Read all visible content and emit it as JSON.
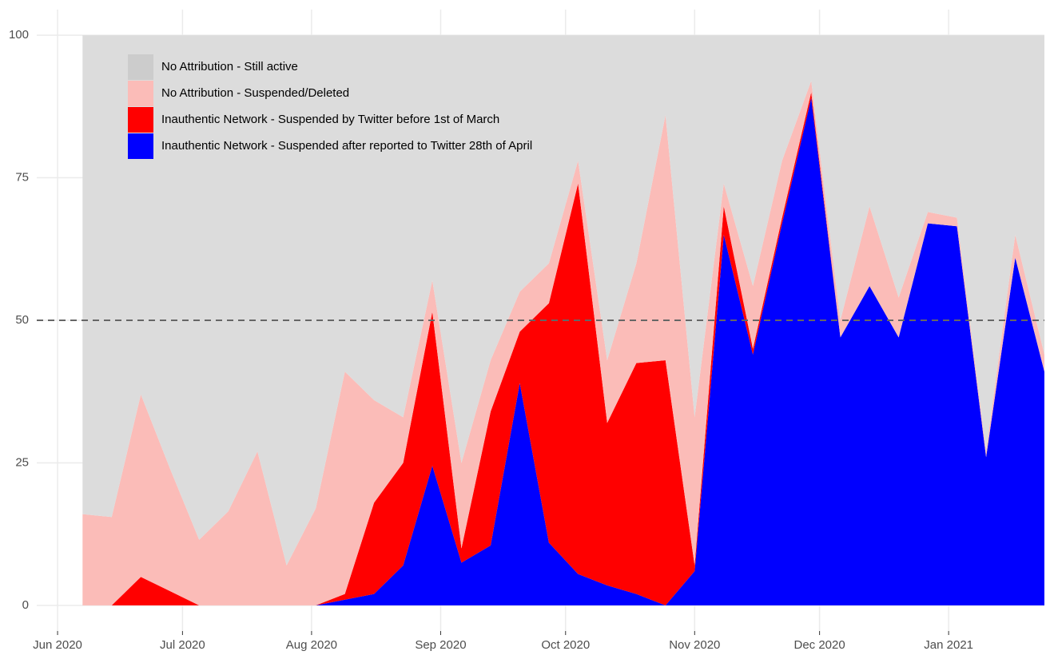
{
  "chart_data": {
    "type": "stacked_area",
    "x": [
      6,
      13,
      20,
      27,
      34,
      41,
      48,
      55,
      62,
      69,
      76,
      83,
      90,
      97,
      104,
      111,
      118,
      125,
      132,
      139,
      146,
      153,
      160,
      167,
      174,
      181,
      188,
      195,
      202,
      209,
      216,
      223,
      230,
      237
    ],
    "series": [
      {
        "name": "No Attribution - Still active",
        "color": "#dcdcdc",
        "legend_color": "#cccccc",
        "values": [
          84,
          84.5,
          63,
          76,
          88.5,
          83.5,
          73,
          93,
          83,
          59,
          64,
          67,
          43,
          75,
          57,
          45,
          40,
          22,
          57,
          40,
          14,
          67,
          26,
          44,
          22,
          8,
          50,
          30,
          46,
          31,
          32,
          73,
          35,
          56
        ]
      },
      {
        "name": "No Attribution - Suspended/Deleted",
        "color": "#fbbcb8",
        "values": [
          16,
          15.5,
          32,
          21.5,
          11.5,
          16.5,
          27,
          7,
          17,
          39,
          18,
          8,
          5.5,
          15,
          9,
          7,
          7,
          4,
          11,
          17.5,
          43,
          26,
          4,
          11,
          10,
          2,
          3,
          14,
          7,
          2,
          1.5,
          1,
          4,
          3
        ]
      },
      {
        "name": "Inauthentic Network - Suspended by Twitter before 1st of March",
        "color": "#ff0000",
        "values": [
          0,
          0,
          5,
          2.5,
          0,
          0,
          0,
          0,
          0,
          1,
          16,
          18,
          27,
          2.5,
          23.5,
          9,
          42,
          68.5,
          28.5,
          40.5,
          43,
          1,
          5,
          1,
          1,
          1,
          0,
          0,
          0,
          0,
          0,
          0,
          0,
          0
        ]
      },
      {
        "name": "Inauthentic Network - Suspended after reported to Twitter 28th of April",
        "color": "#0000ff",
        "values": [
          0,
          0,
          0,
          0,
          0,
          0,
          0,
          0,
          0,
          1,
          2,
          7,
          24.5,
          7.5,
          10.5,
          39,
          11,
          5.5,
          3.5,
          2,
          0,
          6,
          65,
          44,
          67,
          89,
          47,
          56,
          47,
          67,
          66.5,
          26,
          61,
          41
        ]
      }
    ],
    "xlim": [
      -5,
      237
    ],
    "xticks": [
      {
        "value": 0,
        "label": "Jun 2020"
      },
      {
        "value": 30,
        "label": "Jul 2020"
      },
      {
        "value": 61,
        "label": "Aug 2020"
      },
      {
        "value": 92,
        "label": "Sep 2020"
      },
      {
        "value": 122,
        "label": "Oct 2020"
      },
      {
        "value": 153,
        "label": "Nov 2020"
      },
      {
        "value": 183,
        "label": "Dec 2020"
      },
      {
        "value": 214,
        "label": "Jan 2021"
      }
    ],
    "ylim": [
      -4.5,
      104.5
    ],
    "yticks": [
      0,
      25,
      50,
      75,
      100
    ],
    "hline": 50,
    "grid": true,
    "legend": "top-left"
  }
}
